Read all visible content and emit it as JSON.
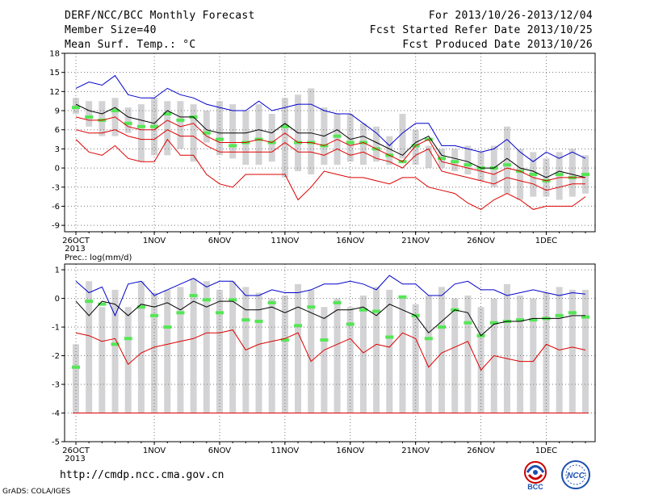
{
  "header": {
    "title": "DERF/NCC/BCC Monthly Forecast",
    "member_size": "Member Size=40",
    "variable": "Mean Surf. Temp.: °C",
    "forecast_period": "For 2013/10/26-2013/12/04",
    "started_refer_date": "Fcst Started Refer Date 2013/10/25",
    "produced_date": "Fcst Produced Date 2013/10/26"
  },
  "footer": {
    "url": "http://cmdp.ncc.cma.gov.cn",
    "grads": "GrADS: COLA/IGES",
    "logo_bcc_text": "BCC",
    "logo_ncc_text": "NCC"
  },
  "colors": {
    "box": "#d3d3d5",
    "mean": "#000000",
    "upper": "#0000cc",
    "lower": "#dd0000",
    "obs": "#55e655",
    "grid": "#777777"
  },
  "chart_data": [
    {
      "type": "line",
      "title": "Mean Surf. Temp.: °C",
      "x_tick_labels": [
        "26OCT\n2013",
        "1NOV",
        "6NOV",
        "11NOV",
        "16NOV",
        "21NOV",
        "26NOV",
        "1DEC"
      ],
      "x_tick_days": [
        0,
        6,
        11,
        16,
        21,
        26,
        31,
        36
      ],
      "y_ticks": [
        -9,
        -6,
        -3,
        0,
        3,
        6,
        9,
        12,
        15,
        18
      ],
      "ylim": [
        -10,
        18
      ],
      "grid": true,
      "days": [
        0,
        1,
        2,
        3,
        4,
        5,
        6,
        7,
        8,
        9,
        10,
        11,
        12,
        13,
        14,
        15,
        16,
        17,
        18,
        19,
        20,
        21,
        22,
        23,
        24,
        25,
        26,
        27,
        28,
        29,
        30,
        31,
        32,
        33,
        34,
        35,
        36,
        37,
        38,
        39
      ],
      "box_min": [
        8.5,
        6.5,
        5,
        5,
        5.5,
        1,
        2,
        2,
        3,
        1,
        4,
        2,
        1.5,
        0.5,
        0.5,
        1,
        -1.5,
        -0.5,
        -1,
        0.5,
        0.5,
        1,
        0.5,
        1,
        0.5,
        1.5,
        0.5,
        0,
        0,
        -0.5,
        -1,
        -2,
        -3,
        -4,
        -5,
        -4.5,
        -4.5,
        -5,
        -4.5,
        -4
      ],
      "box_max": [
        11,
        10.5,
        10.5,
        11,
        9.5,
        10,
        11,
        10.5,
        10.5,
        10,
        9,
        10.5,
        10,
        9,
        10,
        8.5,
        11,
        11.5,
        12.5,
        9.5,
        8.5,
        8.5,
        7,
        6.5,
        5,
        8.5,
        6,
        3.5,
        3,
        3,
        3.5,
        2.5,
        3.5,
        6.5,
        3,
        2.5,
        1.5,
        2.5,
        3,
        2
      ],
      "series": [
        {
          "values": [
            9.5,
            8,
            7.5,
            9,
            7,
            6.5,
            6.5,
            8.5,
            7.5,
            8,
            5.5,
            4.5,
            3.5,
            4,
            4.5,
            4,
            6.5,
            4,
            4,
            3.5,
            5,
            4,
            4,
            3,
            2,
            1,
            3.5,
            4.5,
            1.5,
            1,
            0.5,
            0,
            0,
            0.5,
            -0.5,
            -1,
            -2,
            -1,
            -1.5,
            -1
          ]
        },
        {
          "values": [
            12.5,
            13.5,
            13,
            14.5,
            11.5,
            11,
            11,
            12.5,
            11.5,
            11,
            10,
            9.5,
            9,
            9,
            10.5,
            9,
            9.5,
            10,
            10,
            9,
            8.5,
            8.5,
            7,
            5.5,
            3.5,
            5.5,
            7,
            7,
            3.5,
            3.5,
            3,
            2.5,
            3,
            4.5,
            2.5,
            1,
            2.5,
            1.5,
            2.5,
            1.5
          ]
        },
        {
          "values": [
            4.5,
            2.5,
            2,
            3.5,
            1.5,
            1,
            1,
            4.5,
            2,
            2,
            -1,
            -2.5,
            -3,
            -1,
            -1,
            -1,
            -1,
            -5,
            -3,
            -0.5,
            -1,
            -1.5,
            -1.5,
            -2,
            -2.5,
            -1.5,
            -1.5,
            -3,
            -3.5,
            -4,
            -5.5,
            -6.5,
            -5,
            -4,
            -5,
            -6.5,
            -6,
            -6,
            -6,
            -4.5
          ]
        },
        {
          "values": [
            10,
            9,
            8.5,
            9.5,
            8,
            7.5,
            7,
            9,
            8,
            8,
            6,
            5.5,
            5.5,
            5.5,
            6,
            5.5,
            7,
            5.5,
            5.5,
            5,
            6,
            4.5,
            5,
            4,
            3,
            2,
            4,
            5,
            2,
            1.5,
            1,
            0,
            0,
            1.5,
            0,
            -0.5,
            -1.5,
            -0.5,
            -1,
            -1.5
          ]
        },
        {
          "values": [
            8,
            7.5,
            7.5,
            8,
            6.5,
            6,
            6,
            7.5,
            6.5,
            7,
            5,
            4,
            4,
            4,
            4.5,
            4,
            5.5,
            4,
            4,
            3.5,
            4.5,
            3.5,
            4,
            3,
            2,
            1,
            3.5,
            4.5,
            1,
            0.5,
            0,
            -0.5,
            -1,
            0,
            -0.5,
            -1.5,
            -2,
            -1.5,
            -1.5,
            -1.5
          ]
        },
        {
          "values": [
            6,
            5.5,
            5.5,
            6,
            5,
            4.5,
            4.5,
            6,
            5,
            5,
            3.5,
            2.5,
            2.5,
            2.5,
            2.5,
            2.5,
            4,
            2.5,
            2.5,
            2,
            3,
            2,
            2.5,
            1.5,
            1,
            0,
            2,
            3,
            -0.5,
            -1,
            -1.5,
            -2,
            -2.5,
            -1.5,
            -2,
            -2.5,
            -3.5,
            -3,
            -2.5,
            -2.5
          ]
        }
      ]
    },
    {
      "type": "line",
      "title": "Prec.: log(mm/d)",
      "x_tick_labels": [
        "26OCT\n2013",
        "1NOV",
        "6NOV",
        "11NOV",
        "16NOV",
        "21NOV",
        "26NOV",
        "1DEC"
      ],
      "x_tick_days": [
        0,
        6,
        11,
        16,
        21,
        26,
        31,
        36
      ],
      "y_ticks": [
        -5,
        -4,
        -3,
        -2,
        -1,
        0,
        1
      ],
      "ylim": [
        -5,
        1.2
      ],
      "grid": true,
      "days": [
        0,
        1,
        2,
        3,
        4,
        5,
        6,
        7,
        8,
        9,
        10,
        11,
        12,
        13,
        14,
        15,
        16,
        17,
        18,
        19,
        20,
        21,
        22,
        23,
        24,
        25,
        26,
        27,
        28,
        29,
        30,
        31,
        32,
        33,
        34,
        35,
        36,
        37,
        38,
        39
      ],
      "box_min": [
        -4,
        -4,
        -4,
        -4,
        -4,
        -4,
        -4,
        -4,
        -4,
        -4,
        -4,
        -4,
        -4,
        -4,
        -4,
        -4,
        -4,
        -4,
        -4,
        -4,
        -4,
        -4,
        -4,
        -4,
        -4,
        -4,
        -4,
        -4,
        -4,
        -4,
        -4,
        -4,
        -4,
        -4,
        -4,
        -4,
        -4,
        -4,
        -4,
        -4
      ],
      "box_max": [
        -1.6,
        0.6,
        -0.3,
        0.3,
        -0.3,
        0.6,
        0.2,
        0.3,
        0.4,
        0.7,
        0.6,
        0.3,
        0.6,
        0.4,
        0.2,
        0,
        0.1,
        0.5,
        0.3,
        -0.3,
        0,
        -0.3,
        0.1,
        0.4,
        0.3,
        0.1,
        -0.2,
        0.1,
        0.4,
        0,
        0.1,
        -0.3,
        0,
        0.5,
        0.1,
        0,
        0.2,
        0.4,
        0.3,
        0.3
      ],
      "series": [
        {
          "values": [
            -2.4,
            -0.1,
            -0.2,
            -1.6,
            -1.4,
            -0.3,
            -0.6,
            -1.0,
            -0.5,
            0.1,
            -0.05,
            -0.5,
            -0.05,
            -0.75,
            -0.8,
            -0.15,
            -1.45,
            -0.95,
            -0.3,
            -1.45,
            -0.15,
            -0.9,
            -0.4,
            -0.45,
            -1.35,
            0.05,
            -0.6,
            -1.4,
            -1.0,
            -0.4,
            -0.85,
            -1.3,
            -0.85,
            -0.8,
            -0.75,
            -0.75,
            -0.7,
            -0.6,
            -0.5,
            -0.65
          ]
        },
        {
          "values": [
            0.6,
            0.2,
            0.4,
            -0.6,
            0.5,
            0.6,
            0.1,
            0.3,
            0.5,
            0.7,
            0.4,
            0.6,
            0.6,
            0.1,
            0.1,
            0.3,
            0.2,
            0.2,
            0.3,
            0.5,
            0.5,
            0.6,
            0.5,
            0.3,
            0.8,
            0.5,
            0.5,
            0.1,
            0.1,
            0.5,
            0.6,
            0.3,
            0.3,
            0.1,
            0.2,
            0.3,
            0.2,
            0.1,
            0.2,
            0.15
          ]
        },
        {
          "values": [
            -1.2,
            -1.3,
            -1.5,
            -1.4,
            -2.3,
            -1.9,
            -1.7,
            -1.6,
            -1.5,
            -1.4,
            -1.2,
            -1.2,
            -1.1,
            -1.8,
            -1.6,
            -1.5,
            -1.4,
            -1.2,
            -2.2,
            -1.8,
            -1.6,
            -1.4,
            -1.9,
            -1.6,
            -1.7,
            -1.2,
            -1.4,
            -2.4,
            -1.9,
            -1.7,
            -1.5,
            -2.5,
            -2.0,
            -2.1,
            -2.2,
            -2.2,
            -1.6,
            -1.8,
            -1.7,
            -1.8
          ]
        },
        {
          "values": [
            -0.1,
            -0.6,
            -0.1,
            -0.2,
            -0.6,
            -0.2,
            -0.3,
            -0.15,
            -0.4,
            -0.1,
            -0.3,
            -0.1,
            -0.1,
            -0.4,
            -0.4,
            -0.3,
            -0.5,
            -0.3,
            -0.5,
            -0.7,
            -0.4,
            -0.4,
            -0.3,
            -0.6,
            -0.2,
            -0.4,
            -0.6,
            -1.2,
            -0.8,
            -0.4,
            -0.5,
            -1.3,
            -0.9,
            -0.8,
            -0.8,
            -0.7,
            -0.7,
            -0.7,
            -0.6,
            -0.6
          ]
        }
      ]
    }
  ]
}
